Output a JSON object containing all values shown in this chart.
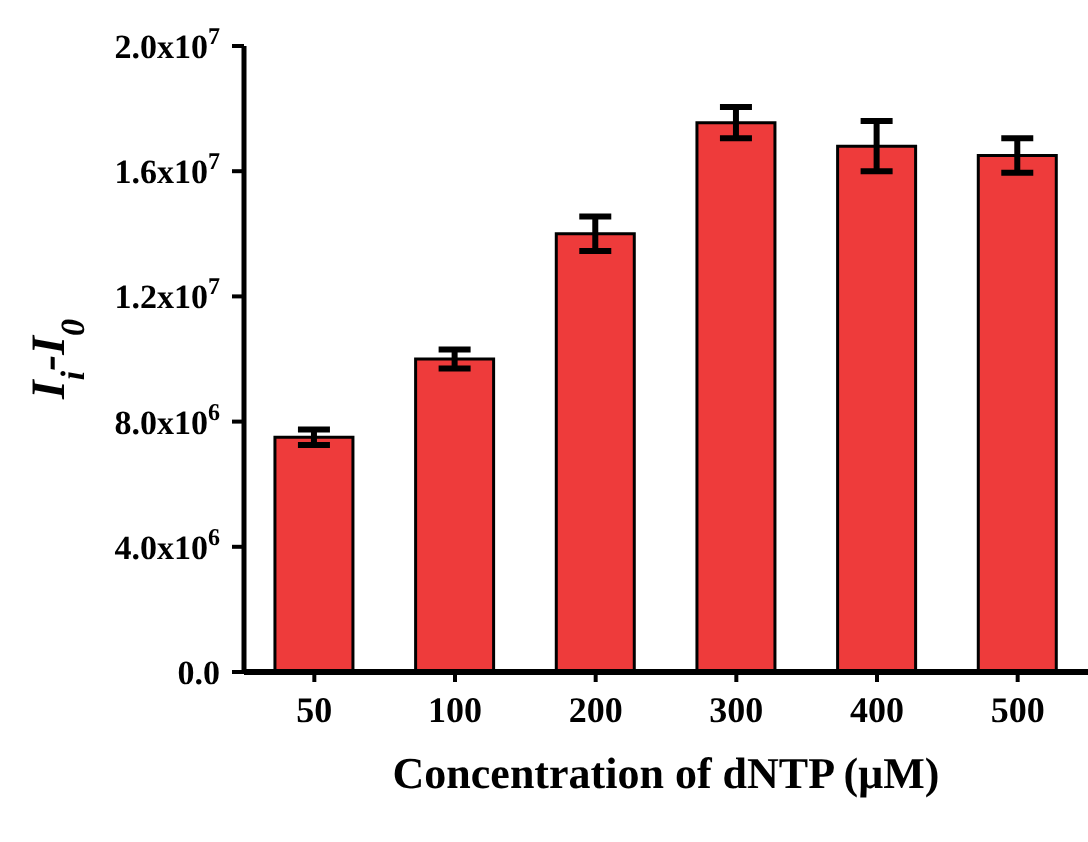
{
  "chart_data": {
    "type": "bar",
    "xlabel": "Concentration of dNTP (μM)",
    "ylabel": "I$_{i}$-I$_{0}$",
    "categories": [
      "50",
      "100",
      "200",
      "300",
      "400",
      "500"
    ],
    "values": [
      7500000.0,
      10000000.0,
      14000000.0,
      17550000.0,
      16800000.0,
      16500000.0
    ],
    "errors": [
      250000.0,
      300000.0,
      550000.0,
      500000.0,
      800000.0,
      550000.0
    ],
    "color": "#ee3b3b",
    "ylim": [
      0,
      20000000.0
    ],
    "yticks": [
      {
        "value": 0,
        "label": "0.0"
      },
      {
        "value": 4000000.0,
        "label": "4.0x10$^{6}$"
      },
      {
        "value": 8000000.0,
        "label": "8.0x10$^{6}$"
      },
      {
        "value": 12000000.0,
        "label": "1.2x10$^{7}$"
      },
      {
        "value": 16000000.0,
        "label": "1.6x10$^{7}$"
      },
      {
        "value": 20000000.0,
        "label": "2.0x10$^{7}$"
      }
    ],
    "grid": false,
    "legend": false
  }
}
